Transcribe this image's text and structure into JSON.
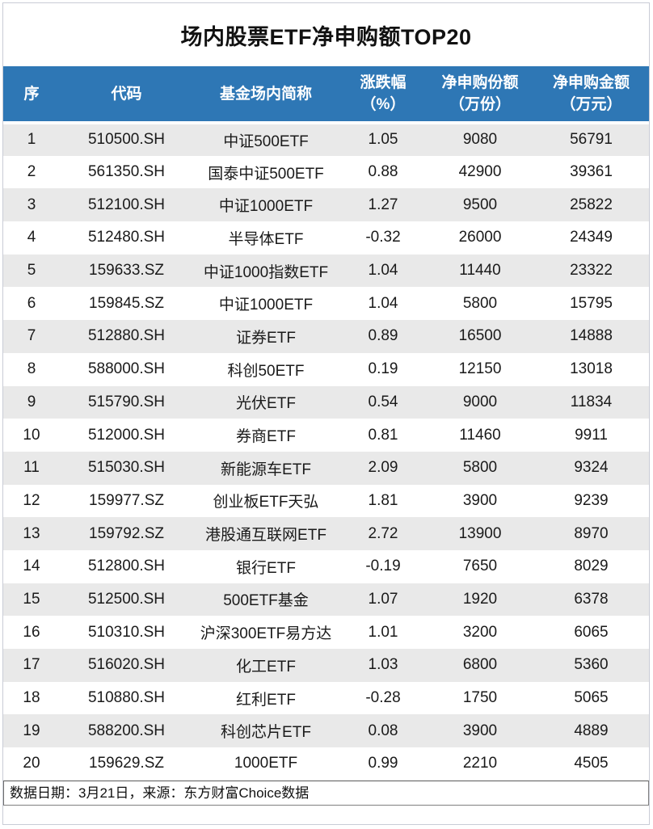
{
  "title": "场内股票ETF净申购额TOP20",
  "chart_data": {
    "type": "table",
    "title": "场内股票ETF净申购额TOP20",
    "columns": [
      {
        "label": "序",
        "unit": ""
      },
      {
        "label": "代码",
        "unit": ""
      },
      {
        "label": "基金场内简称",
        "unit": ""
      },
      {
        "label": "涨跌幅",
        "unit": "（%）"
      },
      {
        "label": "净申购份额",
        "unit": "（万份）"
      },
      {
        "label": "净申购金额",
        "unit": "（万元）"
      }
    ],
    "rows": [
      [
        "1",
        "510500.SH",
        "中证500ETF",
        "1.05",
        "9080",
        "56791"
      ],
      [
        "2",
        "561350.SH",
        "国泰中证500ETF",
        "0.88",
        "42900",
        "39361"
      ],
      [
        "3",
        "512100.SH",
        "中证1000ETF",
        "1.27",
        "9500",
        "25822"
      ],
      [
        "4",
        "512480.SH",
        "半导体ETF",
        "-0.32",
        "26000",
        "24349"
      ],
      [
        "5",
        "159633.SZ",
        "中证1000指数ETF",
        "1.04",
        "11440",
        "23322"
      ],
      [
        "6",
        "159845.SZ",
        "中证1000ETF",
        "1.04",
        "5800",
        "15795"
      ],
      [
        "7",
        "512880.SH",
        "证券ETF",
        "0.89",
        "16500",
        "14888"
      ],
      [
        "8",
        "588000.SH",
        "科创50ETF",
        "0.19",
        "12150",
        "13018"
      ],
      [
        "9",
        "515790.SH",
        "光伏ETF",
        "0.54",
        "9000",
        "11834"
      ],
      [
        "10",
        "512000.SH",
        "券商ETF",
        "0.81",
        "11460",
        "9911"
      ],
      [
        "11",
        "515030.SH",
        "新能源车ETF",
        "2.09",
        "5800",
        "9324"
      ],
      [
        "12",
        "159977.SZ",
        "创业板ETF天弘",
        "1.81",
        "3900",
        "9239"
      ],
      [
        "13",
        "159792.SZ",
        "港股通互联网ETF",
        "2.72",
        "13900",
        "8970"
      ],
      [
        "14",
        "512800.SH",
        "银行ETF",
        "-0.19",
        "7650",
        "8029"
      ],
      [
        "15",
        "512500.SH",
        "500ETF基金",
        "1.07",
        "1920",
        "6378"
      ],
      [
        "16",
        "510310.SH",
        "沪深300ETF易方达",
        "1.01",
        "3200",
        "6065"
      ],
      [
        "17",
        "516020.SH",
        "化工ETF",
        "1.03",
        "6800",
        "5360"
      ],
      [
        "18",
        "510880.SH",
        "红利ETF",
        "-0.28",
        "1750",
        "5065"
      ],
      [
        "19",
        "588200.SH",
        "科创芯片ETF",
        "0.08",
        "3900",
        "4889"
      ],
      [
        "20",
        "159629.SZ",
        "1000ETF",
        "0.99",
        "2210",
        "4505"
      ]
    ]
  },
  "footer": {
    "note": "数据日期：3月21日，来源：东方财富Choice数据"
  },
  "colors": {
    "header_bg": "#2E77B5",
    "header_text": "#FFFFFF",
    "row_alt_bg": "#E9E9E9",
    "body_text": "#1A1A1A",
    "outer_border": "#C9CCD6",
    "footer_border": "#808080"
  }
}
